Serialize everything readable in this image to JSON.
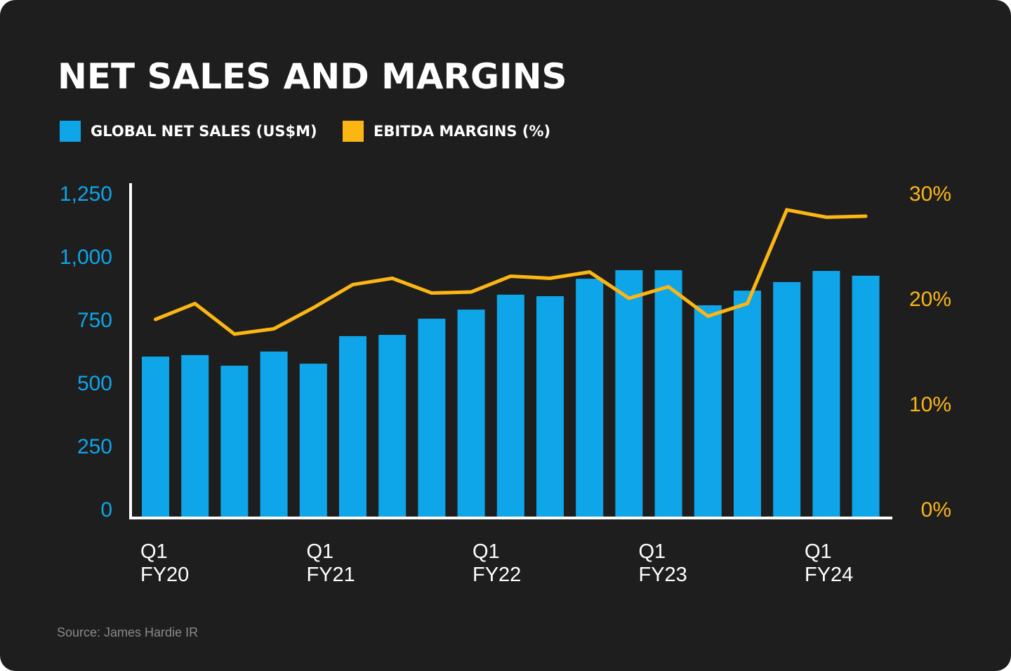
{
  "colors": {
    "background": "#1e1e1e",
    "sales": "#0ea5e9",
    "margin": "#fbb614",
    "axis": "#ffffff"
  },
  "source": "Source: James Hardie IR",
  "chart_data": {
    "type": "bar+line",
    "title": "NET SALES AND MARGINS",
    "legend": [
      {
        "label": "GLOBAL NET SALES (US$M)",
        "color": "#0ea5e9"
      },
      {
        "label": "EBITDA MARGINS (%)",
        "color": "#fbb614"
      }
    ],
    "legend_position": "top-left",
    "grid": false,
    "x_tick_labels": [
      {
        "index": 0,
        "line1": "Q1",
        "line2": "FY20"
      },
      {
        "index": 4,
        "line1": "Q1",
        "line2": "FY21"
      },
      {
        "index": 8,
        "line1": "Q1",
        "line2": "FY22"
      },
      {
        "index": 12,
        "line1": "Q1",
        "line2": "FY23"
      },
      {
        "index": 16,
        "line1": "Q1",
        "line2": "FY24"
      }
    ],
    "y_left": {
      "range": [
        0,
        1250
      ],
      "ticks": [
        "0",
        "250",
        "500",
        "750",
        "1,000",
        "1,250"
      ],
      "tick_values": [
        0,
        250,
        500,
        750,
        1000,
        1250
      ]
    },
    "y_right": {
      "range": [
        0,
        30
      ],
      "ticks": [
        "0%",
        "10%",
        "20%",
        "30%"
      ],
      "tick_values": [
        0,
        10,
        20,
        30
      ]
    },
    "series": [
      {
        "name": "GLOBAL NET SALES (US$M)",
        "type": "bar",
        "axis": "left",
        "values": [
          636,
          642,
          600,
          656,
          608,
          717,
          722,
          786,
          822,
          881,
          875,
          944,
          978,
          978,
          839,
          897,
          931,
          975,
          956
        ]
      },
      {
        "name": "EBITDA MARGINS (%)",
        "type": "line",
        "axis": "right",
        "values": [
          18.8,
          20.3,
          17.4,
          17.9,
          19.9,
          22.1,
          22.7,
          21.3,
          21.4,
          22.9,
          22.7,
          23.3,
          20.8,
          21.9,
          19.1,
          20.3,
          29.2,
          28.5,
          28.6
        ]
      }
    ]
  }
}
